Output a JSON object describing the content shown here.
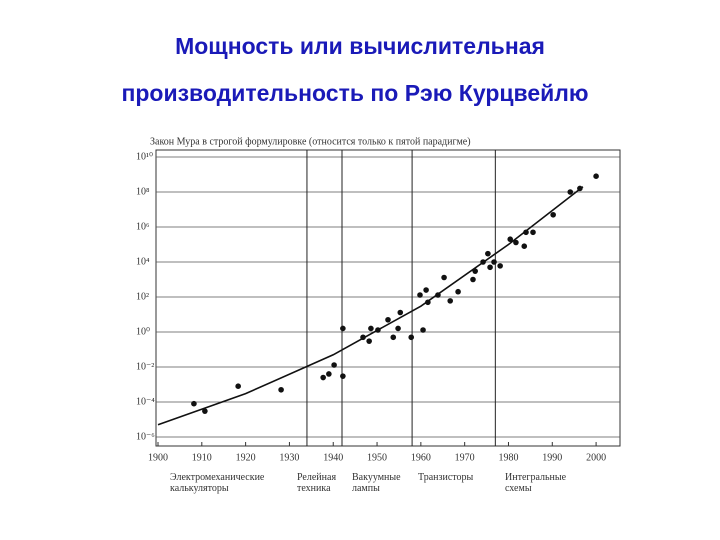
{
  "slide_title": [
    "Мощность или вычислительная",
    "производительность по Рэю Курцвейлю"
  ],
  "chart_data": {
    "type": "scatter",
    "title": "Закон Мура в строгой формулировке (относится только к пятой парадигме)",
    "log_y": true,
    "grid": true,
    "color": "#111111",
    "x": [
      1908.2,
      1910.7,
      1918.3,
      1928.1,
      1937.7,
      1939,
      1940.2,
      1942.2,
      1942.2,
      1946.8,
      1948.2,
      1948.6,
      1950.2,
      1952.5,
      1953.7,
      1954.8,
      1955.3,
      1957.8,
      1960.5,
      1959.8,
      1961.2,
      1961.6,
      1963.9,
      1965.3,
      1966.7,
      1968.5,
      1971.9,
      1972.4,
      1974.2,
      1975.3,
      1975.8,
      1976.7,
      1978.1,
      1980.4,
      1981.7,
      1983.6,
      1984,
      1985.6,
      1990.2,
      1994.1,
      1996.3,
      2000
    ],
    "values": [
      8e-05,
      3e-05,
      0.0008,
      0.0005,
      0.0025,
      0.004,
      0.013,
      0.003,
      1.6,
      0.5,
      0.3,
      1.6,
      1.3,
      5,
      0.5,
      1.6,
      13,
      0.5,
      1.3,
      130,
      250,
      50,
      130,
      1300,
      60,
      200,
      1000,
      3000,
      10000,
      30000,
      5000,
      10000,
      6000,
      200000,
      130000,
      80000,
      500000,
      500000,
      5000000,
      100000000,
      160000000,
      800000000
    ],
    "trend": {
      "x": [
        1900,
        1920,
        1940,
        1960,
        1980,
        1997
      ],
      "values": [
        5e-06,
        0.0003,
        0.05,
        30,
        100000,
        200000000
      ]
    },
    "paradigm_boundaries": [
      1934,
      1942,
      1958,
      1977
    ],
    "paradigms": [
      "Электромеханические калькуляторы",
      "Релейная техника",
      "Вакуумные лампы",
      "Транзисторы",
      "Интегральные схемы"
    ],
    "xlim": [
      1900,
      2005
    ],
    "xticks": [
      1900,
      1910,
      1920,
      1930,
      1940,
      1950,
      1960,
      1970,
      1980,
      1990,
      2000
    ],
    "ylim": [
      1e-06,
      10000000000.0
    ],
    "yticks": [
      {
        "value": 1e-06,
        "label": "10⁻⁶"
      },
      {
        "value": 0.0001,
        "label": "10⁻⁴"
      },
      {
        "value": 0.01,
        "label": "10⁻²"
      },
      {
        "value": 1,
        "label": "10⁰"
      },
      {
        "value": 100,
        "label": "10²"
      },
      {
        "value": 10000,
        "label": "10⁴"
      },
      {
        "value": 1000000,
        "label": "10⁶"
      },
      {
        "value": 100000000,
        "label": "10⁸"
      },
      {
        "value": 10000000000,
        "label": "10¹⁰"
      }
    ]
  }
}
